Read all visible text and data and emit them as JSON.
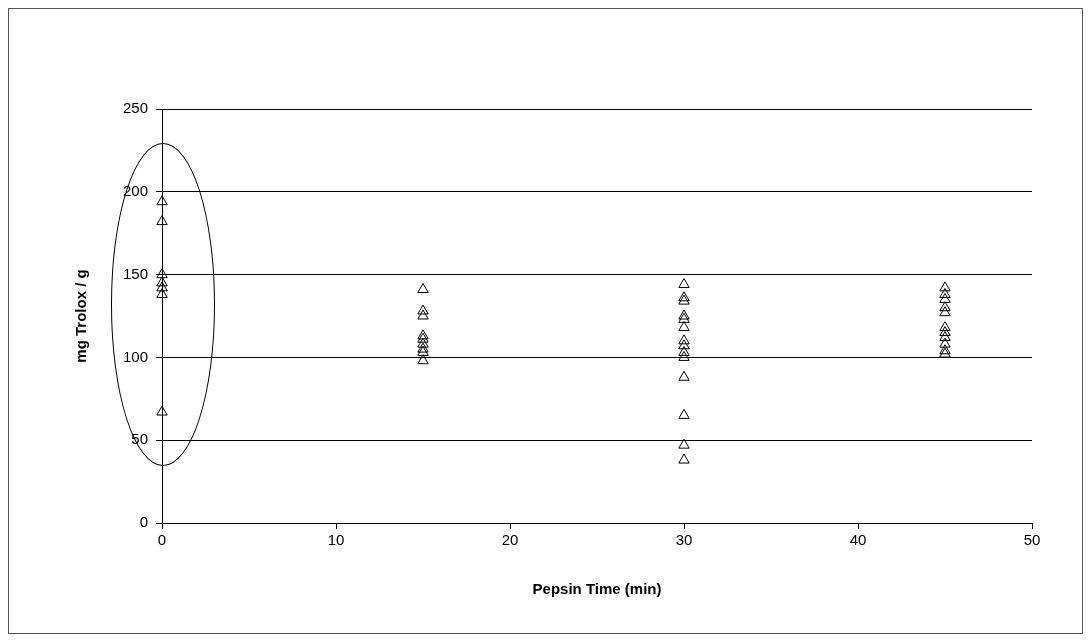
{
  "chart_data": {
    "type": "scatter",
    "xlabel": "Pepsin Time (min)",
    "ylabel": "mg Trolox / g",
    "series": [
      {
        "color": "#000000",
        "x": [
          0,
          0,
          0,
          0,
          0,
          0,
          0,
          15,
          15,
          15,
          15,
          15,
          15,
          15,
          15,
          15,
          30,
          30,
          30,
          30,
          30,
          30,
          30,
          30,
          30,
          30,
          30,
          30,
          30,
          30,
          45,
          45,
          45,
          45,
          45,
          45,
          45,
          45,
          45,
          45,
          45
        ],
        "values": [
          194,
          182,
          150,
          145,
          142,
          138,
          67,
          141,
          128,
          125,
          113,
          111,
          108,
          105,
          103,
          98,
          144,
          136,
          134,
          125,
          123,
          118,
          110,
          107,
          103,
          100,
          88,
          65,
          47,
          38,
          142,
          138,
          135,
          130,
          127,
          118,
          115,
          112,
          108,
          104,
          102
        ]
      }
    ],
    "xlim": [
      0,
      50
    ],
    "xticks": [
      0,
      10,
      20,
      30,
      40,
      50
    ],
    "ylim": [
      0,
      250
    ],
    "yticks": [
      0,
      50,
      100,
      150,
      200,
      250
    ],
    "grid": "y",
    "legend": false,
    "marker": "triangle"
  }
}
